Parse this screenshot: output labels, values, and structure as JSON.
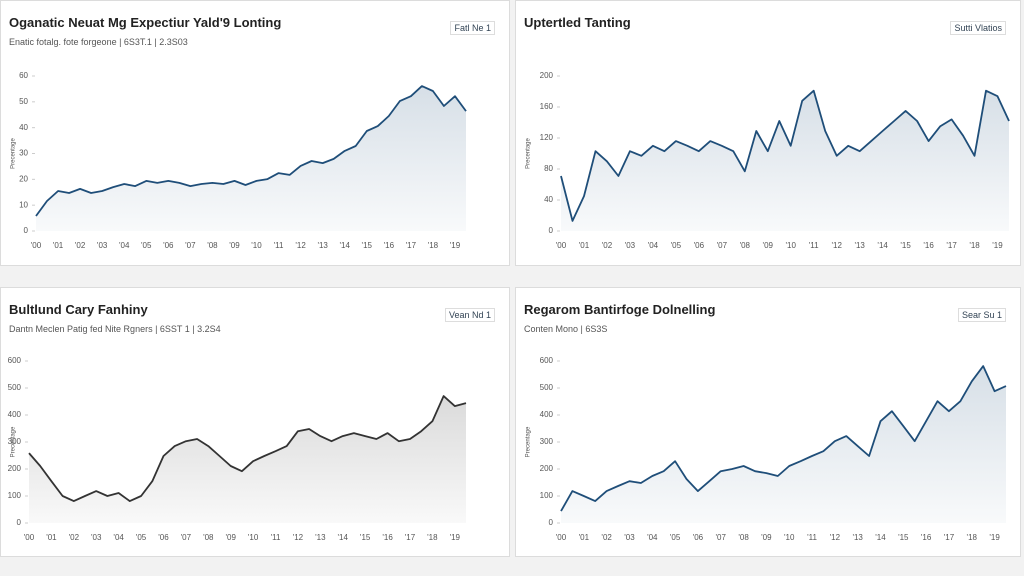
{
  "chart_data": [
    {
      "type": "line",
      "title": "Oganatic Neuat Mg Expectiur Yald'9 Lonting",
      "subtitle": "Enatic fotalg. fote forgeone | 6S3T.1 | 2.3S03",
      "badge": "Fatl Ne 1",
      "y_label": "Precentage",
      "color": "#1f4e79",
      "categories": [
        "'00",
        null,
        "'01",
        null,
        "'02",
        null,
        "'03",
        null,
        "'04",
        null,
        "'05",
        null,
        "'06",
        null,
        "'07",
        null,
        "'08",
        null,
        "'09",
        null,
        "'10",
        null,
        "'11",
        null,
        "'12",
        null,
        "'13",
        null,
        "'14",
        null,
        "'15",
        null,
        "'16",
        null,
        "'17",
        null,
        "'18",
        null,
        "'19",
        null
      ],
      "values": [
        5.8,
        11.6,
        15.5,
        14.7,
        16.3,
        14.7,
        15.5,
        17,
        18.2,
        17.4,
        19.4,
        18.6,
        19.4,
        18.6,
        17.4,
        18.2,
        18.6,
        18.2,
        19.4,
        17.8,
        19.4,
        20.1,
        22.4,
        21.7,
        25.2,
        27.1,
        26.3,
        27.9,
        31,
        32.9,
        38.7,
        40.6,
        44.5,
        50.3,
        52.2,
        56.1,
        54.2,
        48.4,
        52.2,
        46.4
      ],
      "ylim": [
        0,
        60
      ],
      "yticks": [
        0,
        10,
        20,
        30,
        40,
        50,
        60
      ]
    },
    {
      "type": "line",
      "title": "Uptertled Tanting",
      "badge": "Sutti Vlatios",
      "y_label": "Precentage",
      "color": "#1f4e79",
      "categories": [
        "'00",
        null,
        "'01",
        null,
        "'02",
        null,
        "'03",
        null,
        "'04",
        null,
        "'05",
        null,
        "'06",
        null,
        "'07",
        null,
        "'08",
        null,
        "'09",
        null,
        "'10",
        null,
        "'11",
        null,
        "'12",
        null,
        "'13",
        null,
        "'14",
        null,
        "'15",
        null,
        "'16",
        null,
        "'17",
        null,
        "'18",
        null,
        "'19",
        null
      ],
      "values": [
        71,
        13,
        45,
        103,
        90,
        71,
        103,
        97,
        110,
        103,
        116,
        110,
        103,
        116,
        110,
        103,
        77,
        129,
        103,
        142,
        110,
        168,
        181,
        129,
        97,
        110,
        103,
        116,
        129,
        142,
        155,
        142,
        116,
        135,
        144,
        123,
        97,
        181,
        174,
        142
      ],
      "ylim": [
        0,
        200
      ],
      "yticks": [
        0,
        40,
        80,
        120,
        160,
        200
      ]
    },
    {
      "type": "line",
      "title": "Bultlund Cary Fanhiny",
      "subtitle": "Dantn Meclen Patig fed Nite Rgners | 6SST 1 | 3.2S4",
      "badge": "Vean Nd 1",
      "y_label": "Precentage",
      "color": "#333333",
      "categories": [
        "'00",
        null,
        "'01",
        null,
        "'02",
        null,
        "'03",
        null,
        "'04",
        null,
        "'05",
        null,
        "'06",
        null,
        "'07",
        null,
        "'08",
        null,
        "'09",
        null,
        "'10",
        null,
        "'11",
        null,
        "'12",
        null,
        "'13",
        null,
        "'14",
        null,
        "'15",
        null,
        "'16",
        null,
        "'17",
        null,
        "'18",
        null,
        "'19",
        null
      ],
      "values": [
        259,
        211,
        155,
        100,
        81,
        100,
        118,
        100,
        111,
        81,
        100,
        155,
        248,
        285,
        303,
        311,
        285,
        248,
        211,
        192,
        229,
        248,
        266,
        285,
        340,
        348,
        322,
        303,
        322,
        333,
        322,
        311,
        333,
        303,
        311,
        340,
        377,
        470,
        433,
        444
      ],
      "ylim": [
        0,
        600
      ],
      "yticks": [
        0,
        100,
        200,
        300,
        400,
        500,
        600
      ]
    },
    {
      "type": "line",
      "title": "Regarom Bantirfoge Dolnelling",
      "subtitle": "Conten Mono | 6S3S",
      "badge": "Sear Su 1",
      "y_label": "Precentage",
      "color": "#1f4e79",
      "categories": [
        "'00",
        null,
        "'01",
        null,
        "'02",
        null,
        "'03",
        null,
        "'04",
        null,
        "'05",
        null,
        "'06",
        null,
        "'07",
        null,
        "'08",
        null,
        "'09",
        null,
        "'10",
        null,
        "'11",
        null,
        "'12",
        null,
        "'13",
        null,
        "'14",
        null,
        "'15",
        null,
        "'16",
        null,
        "'17",
        null,
        "'18",
        null,
        "'19",
        null
      ],
      "values": [
        44,
        118,
        100,
        81,
        118,
        137,
        155,
        148,
        174,
        192,
        229,
        163,
        118,
        155,
        192,
        200,
        211,
        192,
        185,
        174,
        211,
        229,
        248,
        266,
        303,
        322,
        285,
        248,
        377,
        414,
        359,
        303,
        377,
        451,
        414,
        451,
        525,
        581,
        488,
        507
      ],
      "ylim": [
        0,
        600
      ],
      "yticks": [
        0,
        100,
        200,
        300,
        400,
        500,
        600
      ]
    }
  ]
}
